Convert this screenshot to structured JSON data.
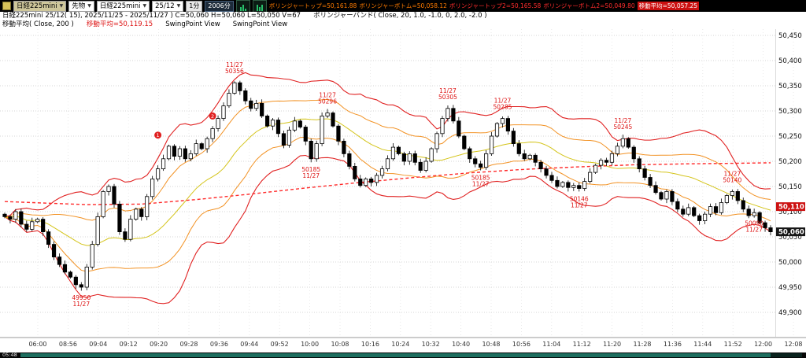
{
  "toolbar": {
    "symbol_combo": "日経225mini",
    "category_combo": "先物",
    "instrument_combo": "日経225mini",
    "contract_combo": "25/12",
    "interval_button": "1分",
    "range_button": "2006分",
    "readouts": [
      {
        "text": "ボリンジャートップ=50,161.88"
      },
      {
        "text": "ボリンジャーボトム=50,058.12"
      },
      {
        "text": "ボリンジャートップ2=50,165.58"
      },
      {
        "text": "ボリンジャーボトム2=50,049.80"
      },
      {
        "text": "移動平均=50,057.25"
      }
    ]
  },
  "header": {
    "line1_main": "日経225mini 25/12( 15), 2025/11/25 - 2025/11/27 )  C=50,060 H=50,060 L=50,050 V=67",
    "line1_indicator": "ボリンジャーバンド( Close, 20, 1.0, -1.0, 0, 2.0, -2.0 )",
    "line2_ma_label": "移動平均( Close, 200 )",
    "line2_ma_value": "移動平均=50,119.15",
    "line2_swing1": "SwingPoint View",
    "line2_swing2": "SwingPoint View"
  },
  "bottom": {
    "status_time": "05:48"
  },
  "chart_data": {
    "type": "candlestick",
    "title": "日経225mini 25/12",
    "axis": {
      "max": 50450,
      "min": 49900,
      "step": 50
    },
    "first_open": 50095,
    "closes": [
      50090,
      50085,
      50100,
      50075,
      50065,
      50080,
      50085,
      50060,
      50035,
      50010,
      49995,
      49980,
      49970,
      49955,
      49950,
      49990,
      50035,
      50090,
      50140,
      50150,
      50115,
      50060,
      50045,
      50085,
      50105,
      50090,
      50130,
      50165,
      50185,
      50205,
      50230,
      50210,
      50225,
      50205,
      50215,
      50235,
      50225,
      50245,
      50265,
      50285,
      50310,
      50335,
      50356,
      50340,
      50320,
      50305,
      50315,
      50290,
      50270,
      50282,
      50255,
      50232,
      50262,
      50280,
      50268,
      50240,
      50205,
      50235,
      50290,
      50296,
      50270,
      50240,
      50215,
      50190,
      50165,
      50152,
      50165,
      50158,
      50172,
      50185,
      50205,
      50228,
      50215,
      50200,
      50215,
      50198,
      50182,
      50200,
      50225,
      50255,
      50285,
      50305,
      50280,
      50250,
      50225,
      50205,
      50195,
      50188,
      50215,
      50250,
      50275,
      50285,
      50260,
      50235,
      50215,
      50205,
      50212,
      50198,
      50185,
      50172,
      50162,
      50150,
      50158,
      50148,
      50152,
      50146,
      50160,
      50178,
      50192,
      50202,
      50198,
      50215,
      50230,
      50245,
      50228,
      50205,
      50185,
      50168,
      50152,
      50138,
      50125,
      50140,
      50120,
      50105,
      50095,
      50108,
      50092,
      50082,
      50095,
      50110,
      50098,
      50118,
      50132,
      50140,
      50122,
      50105,
      50092,
      50098,
      50078,
      50068,
      50060
    ],
    "bollinger": {
      "window": 20,
      "multipliers": [
        1.0,
        -1.0,
        0,
        2.0,
        -2.0
      ]
    },
    "ma200": [
      [
        0,
        50120
      ],
      [
        15,
        50114
      ],
      [
        25,
        50115
      ],
      [
        35,
        50124
      ],
      [
        45,
        50135
      ],
      [
        55,
        50147
      ],
      [
        65,
        50158
      ],
      [
        75,
        50168
      ],
      [
        85,
        50177
      ],
      [
        95,
        50184
      ],
      [
        105,
        50189
      ],
      [
        115,
        50193
      ],
      [
        125,
        50195
      ],
      [
        133,
        50196
      ],
      [
        140,
        50197
      ]
    ],
    "swing_labels": [
      {
        "i": 14,
        "type": "low",
        "line1": "49950",
        "line2": "11/27"
      },
      {
        "i": 42,
        "type": "high",
        "line1": "11/27",
        "line2": "50356"
      },
      {
        "i": 56,
        "type": "low",
        "line1": "50185",
        "line2": "11/27"
      },
      {
        "i": 59,
        "type": "high",
        "line1": "11/27",
        "line2": "50296"
      },
      {
        "i": 81,
        "type": "high",
        "line1": "11/27",
        "line2": "50305"
      },
      {
        "i": 87,
        "type": "low",
        "line1": "50185",
        "line2": "11/27"
      },
      {
        "i": 91,
        "type": "high",
        "line1": "11/27",
        "line2": "50285"
      },
      {
        "i": 105,
        "type": "low",
        "line1": "50146",
        "line2": "11/27"
      },
      {
        "i": 113,
        "type": "high",
        "line1": "11/27",
        "line2": "50245"
      },
      {
        "i": 133,
        "type": "high",
        "line1": "11/27",
        "line2": "50140"
      },
      {
        "i": 137,
        "type": "low",
        "line1": "50090",
        "line2": "11/27"
      }
    ],
    "markers": [
      {
        "i": 28,
        "label": "1",
        "price": 50252
      },
      {
        "i": 38,
        "label": "2",
        "price": 50290
      }
    ],
    "price_tags": [
      {
        "label": "50,110",
        "price": 50110,
        "style": "red"
      },
      {
        "label": "50,060",
        "price": 50060,
        "style": "black"
      }
    ],
    "time_labels": [
      "06:00",
      "08:56",
      "09:04",
      "09:12",
      "09:20",
      "09:28",
      "09:36",
      "09:44",
      "09:52",
      "10:00",
      "10:08",
      "10:16",
      "10:24",
      "10:32",
      "10:40",
      "10:48",
      "10:56",
      "11:04",
      "11:12",
      "11:20",
      "11:28",
      "11:36",
      "11:44",
      "11:52",
      "12:00",
      "12:08"
    ],
    "colors": {
      "band_outer": "#e02020",
      "band_inner": "#f29224",
      "band_mid": "#d4c41a",
      "ma200": "#ff2a2a",
      "swing_label": "#dd1111",
      "tag_red_bg": "#cc1111",
      "tag_black_bg": "#151515",
      "up_candle": "#ffffff",
      "down_candle": "#000000"
    }
  }
}
